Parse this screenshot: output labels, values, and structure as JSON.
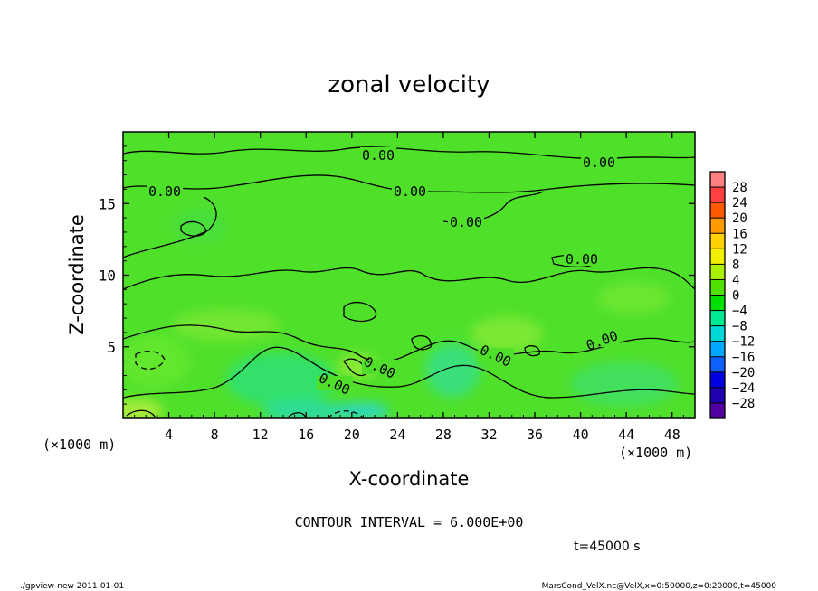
{
  "chart_data": {
    "type": "heatmap",
    "title": "zonal velocity",
    "xlabel": "X-coordinate",
    "ylabel": "Z-coordinate",
    "x_unit_note": "(×1000 m)",
    "z_unit_note": "(×1000 m)",
    "xlim": [
      0,
      50
    ],
    "ylim": [
      0,
      20
    ],
    "x_ticks": [
      "4",
      "8",
      "12",
      "16",
      "20",
      "24",
      "28",
      "32",
      "36",
      "40",
      "44",
      "48"
    ],
    "y_ticks": [
      "5",
      "10",
      "15"
    ],
    "contour_interval_text": "CONTOUR INTERVAL = 6.000E+00",
    "time_text": "t=45000 s",
    "contour_label": "0.00",
    "colorbar": {
      "levels": [
        "28",
        "24",
        "20",
        "16",
        "12",
        "8",
        "4",
        "0",
        "−4",
        "−8",
        "−12",
        "−16",
        "−20",
        "−24",
        "−28"
      ],
      "colors": [
        "#ff8080",
        "#ff4040",
        "#ff5a00",
        "#ff9a00",
        "#ffd200",
        "#f0f000",
        "#a8f000",
        "#50e000",
        "#00e000",
        "#00e890",
        "#00d8d8",
        "#00a8ff",
        "#1060ff",
        "#0000e0",
        "#2000b0",
        "#5000a0"
      ]
    },
    "grid": false
  },
  "footer": {
    "left": "./gpview-new   2011-01-01",
    "right": "MarsCond_VelX.nc@VelX,x=0:50000,z=0:20000,t=45000"
  }
}
